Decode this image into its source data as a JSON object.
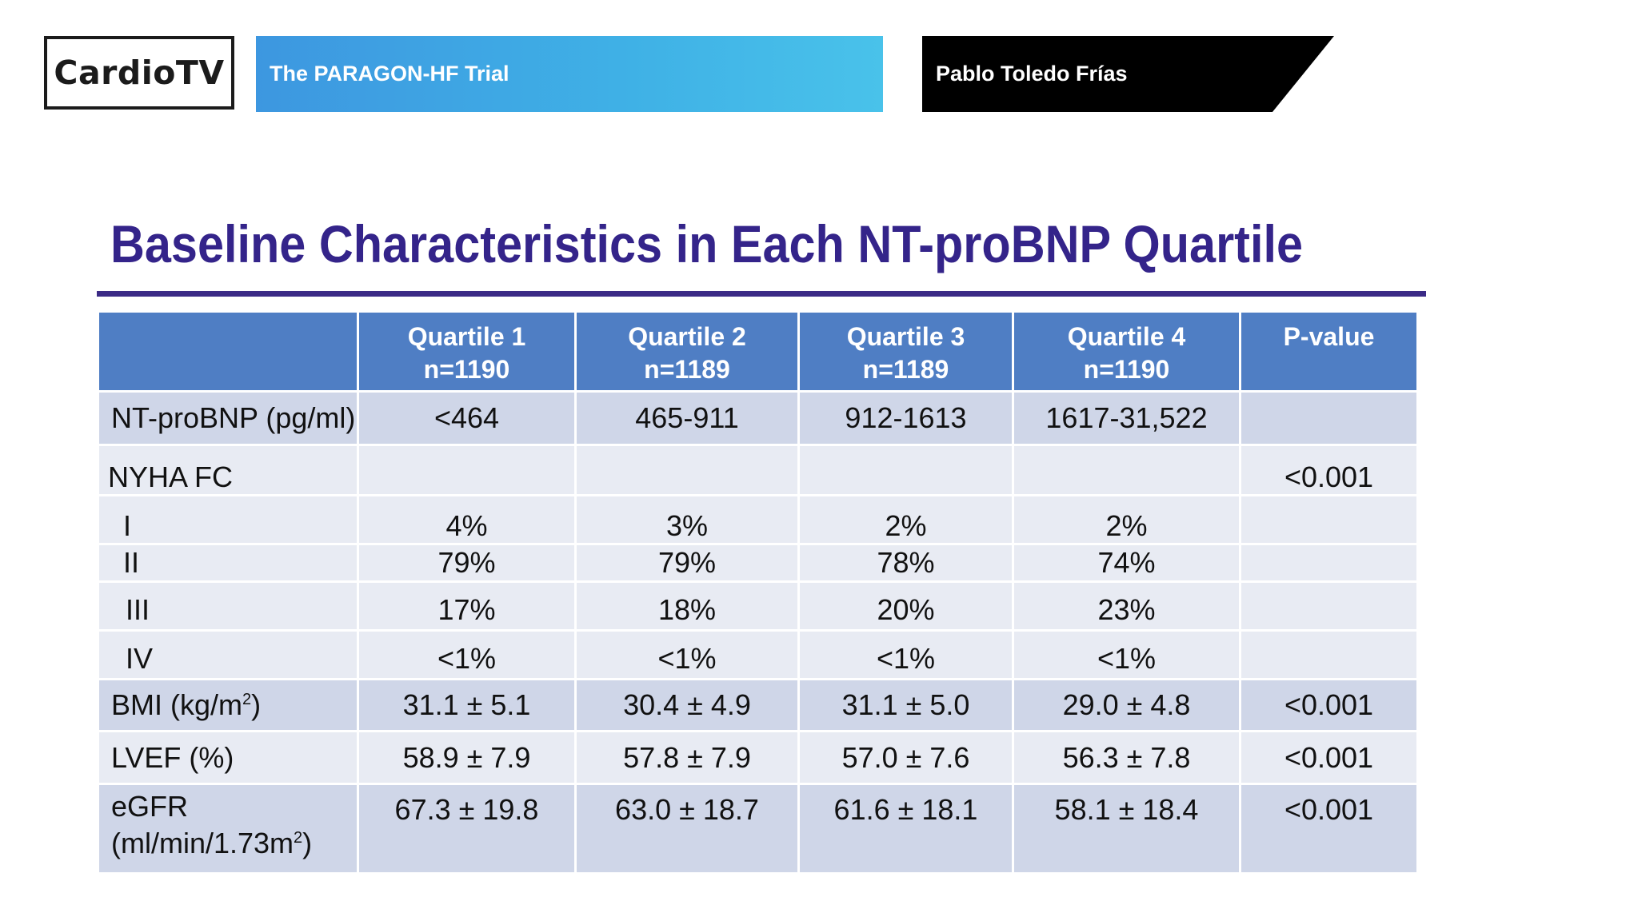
{
  "header": {
    "logo": "CardioTV",
    "show_title": "The PARAGON-HF Trial",
    "speaker": "Pablo Toledo Frías"
  },
  "slide": {
    "title": "Baseline Characteristics in Each NT-proBNP Quartile",
    "columns": [
      {
        "name": "Quartile 1",
        "n": "n=1190"
      },
      {
        "name": "Quartile 2",
        "n": "n=1189"
      },
      {
        "name": "Quartile 3",
        "n": "n=1189"
      },
      {
        "name": "Quartile 4",
        "n": "n=1190"
      },
      {
        "name": "P-value",
        "n": ""
      }
    ],
    "rows": {
      "ntprobnp": {
        "label": "NT-proBNP (pg/ml)",
        "q1": "<464",
        "q2": "465-911",
        "q3": "912-1613",
        "q4": "1617-31,522",
        "p": ""
      },
      "nyha": {
        "label": "NYHA FC",
        "p": "<0.001"
      },
      "nyha_i": {
        "label": "I",
        "q1": "4%",
        "q2": "3%",
        "q3": "2%",
        "q4": "2%"
      },
      "nyha_ii": {
        "label": "II",
        "q1": "79%",
        "q2": "79%",
        "q3": "78%",
        "q4": "74%"
      },
      "nyha_iii": {
        "label": "III",
        "q1": "17%",
        "q2": "18%",
        "q3": "20%",
        "q4": "23%"
      },
      "nyha_iv": {
        "label": "IV",
        "q1": "<1%",
        "q2": "<1%",
        "q3": "<1%",
        "q4": "<1%"
      },
      "bmi": {
        "label": "BMI (kg/m",
        "label_sup": "2",
        "label_end": ")",
        "q1": "31.1 ± 5.1",
        "q2": "30.4 ± 4.9",
        "q3": "31.1 ± 5.0",
        "q4": "29.0 ± 4.8",
        "p": "<0.001"
      },
      "lvef": {
        "label": "LVEF (%)",
        "q1": "58.9 ± 7.9",
        "q2": "57.8 ± 7.9",
        "q3": "57.0 ± 7.6",
        "q4": "56.3 ± 7.8",
        "p": "<0.001"
      },
      "egfr": {
        "label": "eGFR",
        "label2": "(ml/min/1.73m",
        "label_sup": "2",
        "label_end": ")",
        "q1": "67.3 ± 19.8",
        "q2": "63.0 ± 18.7",
        "q3": "61.6 ± 18.1",
        "q4": "58.1 ± 18.4",
        "p": "<0.001"
      }
    }
  }
}
